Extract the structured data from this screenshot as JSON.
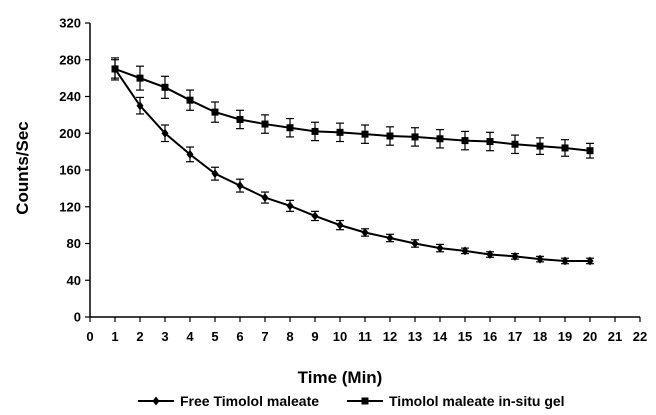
{
  "chart_data": {
    "type": "line",
    "title": "",
    "xlabel": "Time (Min)",
    "ylabel": "Counts/Sec",
    "xlim": [
      0,
      22
    ],
    "ylim": [
      0,
      320
    ],
    "xticks": [
      0,
      1,
      2,
      3,
      4,
      5,
      6,
      7,
      8,
      9,
      10,
      11,
      12,
      13,
      14,
      15,
      16,
      17,
      18,
      19,
      20,
      21,
      22
    ],
    "yticks": [
      0,
      40,
      80,
      120,
      160,
      200,
      240,
      280,
      320
    ],
    "grid": false,
    "legend_position": "bottom",
    "x": [
      1,
      2,
      3,
      4,
      5,
      6,
      7,
      8,
      9,
      10,
      11,
      12,
      13,
      14,
      15,
      16,
      17,
      18,
      19,
      20
    ],
    "series": [
      {
        "name": "Free Timolol maleate",
        "marker": "diamond",
        "color": "#000000",
        "values": [
          270,
          230,
          200,
          177,
          156,
          143,
          130,
          121,
          110,
          100,
          92,
          86,
          80,
          75,
          72,
          68,
          66,
          63,
          61,
          61
        ],
        "errors": [
          10,
          9,
          9,
          8,
          7,
          7,
          6,
          6,
          5,
          5,
          4,
          4,
          4,
          4,
          3,
          3,
          3,
          3,
          3,
          3
        ]
      },
      {
        "name": "Timolol maleate in-situ gel",
        "marker": "square",
        "color": "#000000",
        "values": [
          270,
          260,
          250,
          236,
          223,
          215,
          210,
          206,
          202,
          201,
          199,
          197,
          196,
          194,
          192,
          191,
          188,
          186,
          184,
          181
        ],
        "errors": [
          12,
          13,
          12,
          11,
          11,
          10,
          10,
          10,
          10,
          10,
          10,
          10,
          10,
          10,
          10,
          10,
          10,
          9,
          9,
          8
        ]
      }
    ]
  }
}
